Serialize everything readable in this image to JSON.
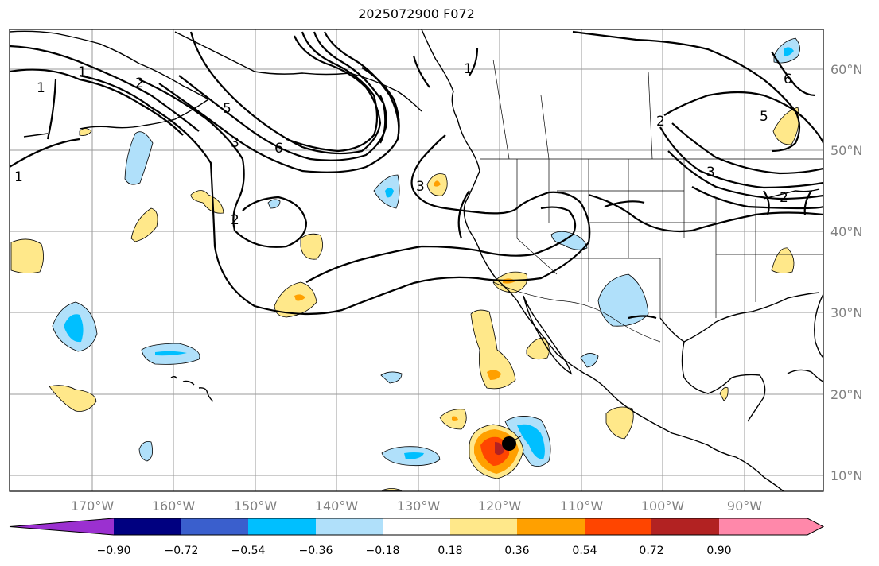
{
  "title": "2025072900 F072",
  "longitude_labels": [
    "170°W",
    "160°W",
    "150°W",
    "140°W",
    "130°W",
    "120°W",
    "110°W",
    "100°W",
    "90°W"
  ],
  "latitude_labels": [
    "60°N",
    "50°N",
    "40°N",
    "30°N",
    "20°N",
    "10°N"
  ],
  "contour_labels": [
    "1",
    "1",
    "1",
    "2",
    "2",
    "2",
    "3",
    "3",
    "3",
    "5",
    "5",
    "6",
    "6",
    "2",
    "1"
  ],
  "colorbar": {
    "ticks": [
      "−0.90",
      "−0.72",
      "−0.54",
      "−0.36",
      "−0.18",
      "0.18",
      "0.36",
      "0.54",
      "0.72",
      "0.90"
    ],
    "colors": [
      "#9b30d0",
      "#000080",
      "#3a5fcd",
      "#00bfff",
      "#b0e0fa",
      "#ffffff",
      "#ffe88a",
      "#ffa000",
      "#ff4500",
      "#b22222",
      "#ff88aa"
    ]
  },
  "marker": {
    "label": "storm-center"
  }
}
